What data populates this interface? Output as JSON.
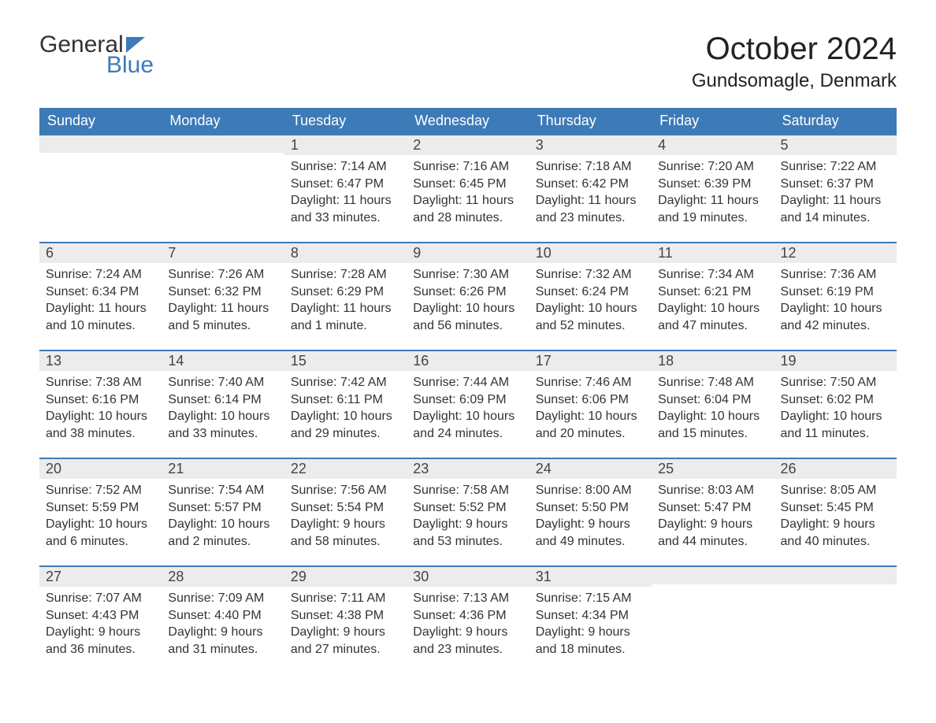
{
  "logo": {
    "text1": "General",
    "text2": "Blue"
  },
  "title": "October 2024",
  "location": "Gundsomagle, Denmark",
  "colors": {
    "header_bg": "#3d7ab8",
    "daynum_bg": "#ececec",
    "text": "#333333"
  },
  "dayHeaders": [
    "Sunday",
    "Monday",
    "Tuesday",
    "Wednesday",
    "Thursday",
    "Friday",
    "Saturday"
  ],
  "weeks": [
    [
      {
        "num": "",
        "sunrise": "",
        "sunset": "",
        "daylight": ""
      },
      {
        "num": "",
        "sunrise": "",
        "sunset": "",
        "daylight": ""
      },
      {
        "num": "1",
        "sunrise": "Sunrise: 7:14 AM",
        "sunset": "Sunset: 6:47 PM",
        "daylight": "Daylight: 11 hours and 33 minutes."
      },
      {
        "num": "2",
        "sunrise": "Sunrise: 7:16 AM",
        "sunset": "Sunset: 6:45 PM",
        "daylight": "Daylight: 11 hours and 28 minutes."
      },
      {
        "num": "3",
        "sunrise": "Sunrise: 7:18 AM",
        "sunset": "Sunset: 6:42 PM",
        "daylight": "Daylight: 11 hours and 23 minutes."
      },
      {
        "num": "4",
        "sunrise": "Sunrise: 7:20 AM",
        "sunset": "Sunset: 6:39 PM",
        "daylight": "Daylight: 11 hours and 19 minutes."
      },
      {
        "num": "5",
        "sunrise": "Sunrise: 7:22 AM",
        "sunset": "Sunset: 6:37 PM",
        "daylight": "Daylight: 11 hours and 14 minutes."
      }
    ],
    [
      {
        "num": "6",
        "sunrise": "Sunrise: 7:24 AM",
        "sunset": "Sunset: 6:34 PM",
        "daylight": "Daylight: 11 hours and 10 minutes."
      },
      {
        "num": "7",
        "sunrise": "Sunrise: 7:26 AM",
        "sunset": "Sunset: 6:32 PM",
        "daylight": "Daylight: 11 hours and 5 minutes."
      },
      {
        "num": "8",
        "sunrise": "Sunrise: 7:28 AM",
        "sunset": "Sunset: 6:29 PM",
        "daylight": "Daylight: 11 hours and 1 minute."
      },
      {
        "num": "9",
        "sunrise": "Sunrise: 7:30 AM",
        "sunset": "Sunset: 6:26 PM",
        "daylight": "Daylight: 10 hours and 56 minutes."
      },
      {
        "num": "10",
        "sunrise": "Sunrise: 7:32 AM",
        "sunset": "Sunset: 6:24 PM",
        "daylight": "Daylight: 10 hours and 52 minutes."
      },
      {
        "num": "11",
        "sunrise": "Sunrise: 7:34 AM",
        "sunset": "Sunset: 6:21 PM",
        "daylight": "Daylight: 10 hours and 47 minutes."
      },
      {
        "num": "12",
        "sunrise": "Sunrise: 7:36 AM",
        "sunset": "Sunset: 6:19 PM",
        "daylight": "Daylight: 10 hours and 42 minutes."
      }
    ],
    [
      {
        "num": "13",
        "sunrise": "Sunrise: 7:38 AM",
        "sunset": "Sunset: 6:16 PM",
        "daylight": "Daylight: 10 hours and 38 minutes."
      },
      {
        "num": "14",
        "sunrise": "Sunrise: 7:40 AM",
        "sunset": "Sunset: 6:14 PM",
        "daylight": "Daylight: 10 hours and 33 minutes."
      },
      {
        "num": "15",
        "sunrise": "Sunrise: 7:42 AM",
        "sunset": "Sunset: 6:11 PM",
        "daylight": "Daylight: 10 hours and 29 minutes."
      },
      {
        "num": "16",
        "sunrise": "Sunrise: 7:44 AM",
        "sunset": "Sunset: 6:09 PM",
        "daylight": "Daylight: 10 hours and 24 minutes."
      },
      {
        "num": "17",
        "sunrise": "Sunrise: 7:46 AM",
        "sunset": "Sunset: 6:06 PM",
        "daylight": "Daylight: 10 hours and 20 minutes."
      },
      {
        "num": "18",
        "sunrise": "Sunrise: 7:48 AM",
        "sunset": "Sunset: 6:04 PM",
        "daylight": "Daylight: 10 hours and 15 minutes."
      },
      {
        "num": "19",
        "sunrise": "Sunrise: 7:50 AM",
        "sunset": "Sunset: 6:02 PM",
        "daylight": "Daylight: 10 hours and 11 minutes."
      }
    ],
    [
      {
        "num": "20",
        "sunrise": "Sunrise: 7:52 AM",
        "sunset": "Sunset: 5:59 PM",
        "daylight": "Daylight: 10 hours and 6 minutes."
      },
      {
        "num": "21",
        "sunrise": "Sunrise: 7:54 AM",
        "sunset": "Sunset: 5:57 PM",
        "daylight": "Daylight: 10 hours and 2 minutes."
      },
      {
        "num": "22",
        "sunrise": "Sunrise: 7:56 AM",
        "sunset": "Sunset: 5:54 PM",
        "daylight": "Daylight: 9 hours and 58 minutes."
      },
      {
        "num": "23",
        "sunrise": "Sunrise: 7:58 AM",
        "sunset": "Sunset: 5:52 PM",
        "daylight": "Daylight: 9 hours and 53 minutes."
      },
      {
        "num": "24",
        "sunrise": "Sunrise: 8:00 AM",
        "sunset": "Sunset: 5:50 PM",
        "daylight": "Daylight: 9 hours and 49 minutes."
      },
      {
        "num": "25",
        "sunrise": "Sunrise: 8:03 AM",
        "sunset": "Sunset: 5:47 PM",
        "daylight": "Daylight: 9 hours and 44 minutes."
      },
      {
        "num": "26",
        "sunrise": "Sunrise: 8:05 AM",
        "sunset": "Sunset: 5:45 PM",
        "daylight": "Daylight: 9 hours and 40 minutes."
      }
    ],
    [
      {
        "num": "27",
        "sunrise": "Sunrise: 7:07 AM",
        "sunset": "Sunset: 4:43 PM",
        "daylight": "Daylight: 9 hours and 36 minutes."
      },
      {
        "num": "28",
        "sunrise": "Sunrise: 7:09 AM",
        "sunset": "Sunset: 4:40 PM",
        "daylight": "Daylight: 9 hours and 31 minutes."
      },
      {
        "num": "29",
        "sunrise": "Sunrise: 7:11 AM",
        "sunset": "Sunset: 4:38 PM",
        "daylight": "Daylight: 9 hours and 27 minutes."
      },
      {
        "num": "30",
        "sunrise": "Sunrise: 7:13 AM",
        "sunset": "Sunset: 4:36 PM",
        "daylight": "Daylight: 9 hours and 23 minutes."
      },
      {
        "num": "31",
        "sunrise": "Sunrise: 7:15 AM",
        "sunset": "Sunset: 4:34 PM",
        "daylight": "Daylight: 9 hours and 18 minutes."
      },
      {
        "num": "",
        "sunrise": "",
        "sunset": "",
        "daylight": ""
      },
      {
        "num": "",
        "sunrise": "",
        "sunset": "",
        "daylight": ""
      }
    ]
  ]
}
